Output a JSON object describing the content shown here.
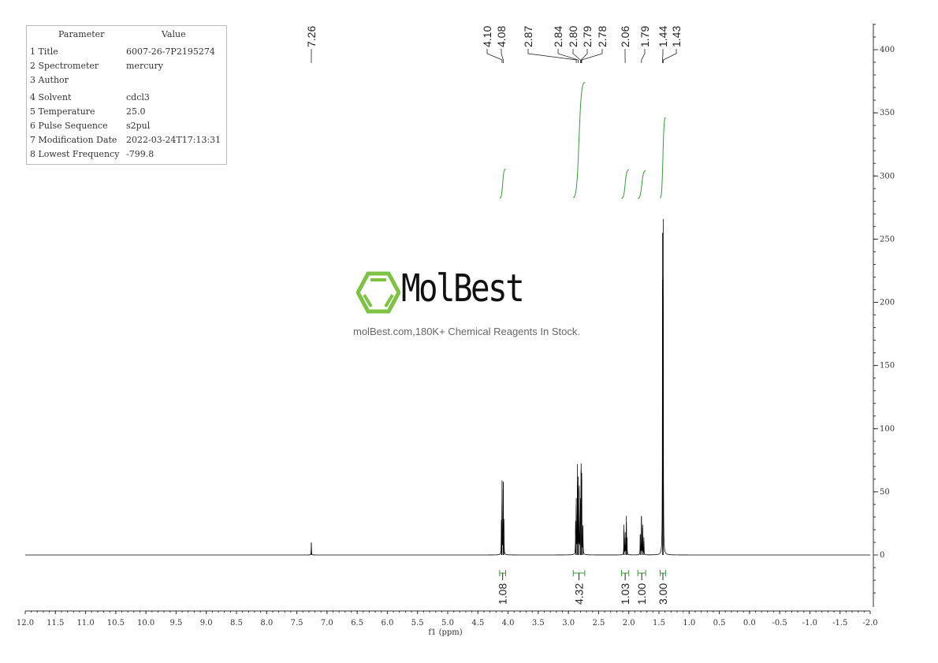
{
  "parameters": {
    "header": {
      "param": "Parameter",
      "value": "Value"
    },
    "rows": [
      {
        "key": "1 Title",
        "value": "6007-26-7P2195274"
      },
      {
        "key": "2 Spectrometer",
        "value": "mercury"
      },
      {
        "key": "3 Author",
        "value": ""
      },
      {
        "key": "4 Solvent",
        "value": "cdcl3"
      },
      {
        "key": "5 Temperature",
        "value": "25.0"
      },
      {
        "key": "6 Pulse Sequence",
        "value": "s2pul"
      },
      {
        "key": "7 Modification Date",
        "value": "2022-03-24T17:13:31"
      },
      {
        "key": "8 Lowest Frequency",
        "value": "-799.8"
      }
    ]
  },
  "watermark": {
    "brand": "MolBest",
    "tagline": "molBest.com,180K+ Chemical Reagents In Stock.",
    "brand_color": "#7dc242"
  },
  "chart_data": {
    "type": "line",
    "xlabel": "f1 (ppm)",
    "xlim": [
      12.0,
      -2.0
    ],
    "x_ticks": [
      "12.0",
      "11.5",
      "11.0",
      "10.5",
      "10.0",
      "9.5",
      "9.0",
      "8.5",
      "8.0",
      "7.5",
      "7.0",
      "6.5",
      "6.0",
      "5.5",
      "5.0",
      "4.5",
      "4.0",
      "3.5",
      "3.0",
      "2.5",
      "2.0",
      "1.5",
      "1.0",
      "0.5",
      "0.0",
      "-0.5",
      "-1.0",
      "-1.5",
      "-2.0"
    ],
    "ylim": [
      -40,
      420
    ],
    "y_ticks": [
      "0",
      "50",
      "100",
      "150",
      "200",
      "250",
      "300",
      "350",
      "400"
    ],
    "line_color": "#000000",
    "integral_color": "#3a9a3a",
    "peaks": [
      {
        "ppm": 7.26,
        "intensity": 10
      },
      {
        "ppm": 4.11,
        "intensity": 28
      },
      {
        "ppm": 4.1,
        "intensity": 59
      },
      {
        "ppm": 4.08,
        "intensity": 58
      },
      {
        "ppm": 4.07,
        "intensity": 26
      },
      {
        "ppm": 2.88,
        "intensity": 27
      },
      {
        "ppm": 2.87,
        "intensity": 45
      },
      {
        "ppm": 2.85,
        "intensity": 72
      },
      {
        "ppm": 2.84,
        "intensity": 62
      },
      {
        "ppm": 2.82,
        "intensity": 55
      },
      {
        "ppm": 2.8,
        "intensity": 40
      },
      {
        "ppm": 2.79,
        "intensity": 67
      },
      {
        "ppm": 2.78,
        "intensity": 60
      },
      {
        "ppm": 2.76,
        "intensity": 22
      },
      {
        "ppm": 2.08,
        "intensity": 24
      },
      {
        "ppm": 2.06,
        "intensity": 18
      },
      {
        "ppm": 2.04,
        "intensity": 31
      },
      {
        "ppm": 2.03,
        "intensity": 14
      },
      {
        "ppm": 1.81,
        "intensity": 16
      },
      {
        "ppm": 1.79,
        "intensity": 31
      },
      {
        "ppm": 1.77,
        "intensity": 24
      },
      {
        "ppm": 1.75,
        "intensity": 14
      },
      {
        "ppm": 1.44,
        "intensity": 255
      },
      {
        "ppm": 1.43,
        "intensity": 266
      }
    ],
    "peak_labels": [
      "7.26",
      "4.10",
      "4.08",
      "2.87",
      "2.84",
      "2.80",
      "2.79",
      "2.78",
      "2.06",
      "1.79",
      "1.44",
      "1.43"
    ],
    "integrals": [
      {
        "from": 4.14,
        "to": 4.04,
        "value": "1.08"
      },
      {
        "from": 2.92,
        "to": 2.73,
        "value": "4.32"
      },
      {
        "from": 2.12,
        "to": 2.0,
        "value": "1.03"
      },
      {
        "from": 1.85,
        "to": 1.72,
        "value": "1.00"
      },
      {
        "from": 1.48,
        "to": 1.39,
        "value": "3.00"
      }
    ]
  }
}
